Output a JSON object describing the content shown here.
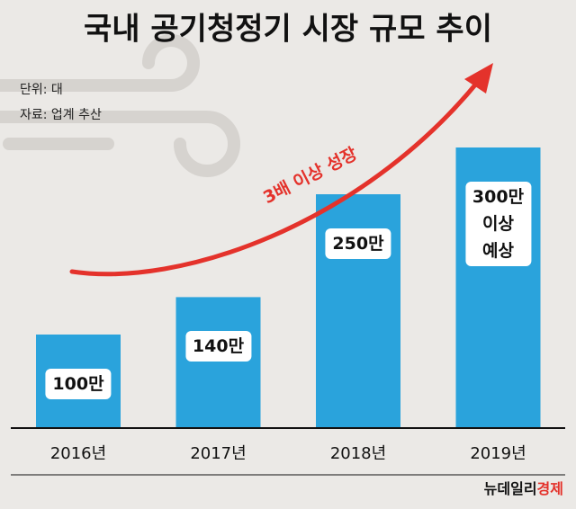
{
  "chart_data": {
    "type": "bar",
    "title": "국내 공기청정기 시장 규모 추이",
    "unit_note": "단위: 대",
    "source_note": "자료: 업계 추산",
    "annotation": "3배 이상 성장",
    "categories": [
      "2016년",
      "2017년",
      "2018년",
      "2019년"
    ],
    "values": [
      100,
      140,
      250,
      300
    ],
    "value_labels": [
      "100만",
      "140만",
      "250만",
      "300만\n이상\n예상"
    ],
    "color": "#2aa3dc",
    "annotation_color": "#e4322b",
    "publisher": {
      "name": "뉴데일리",
      "section": "경제"
    }
  }
}
